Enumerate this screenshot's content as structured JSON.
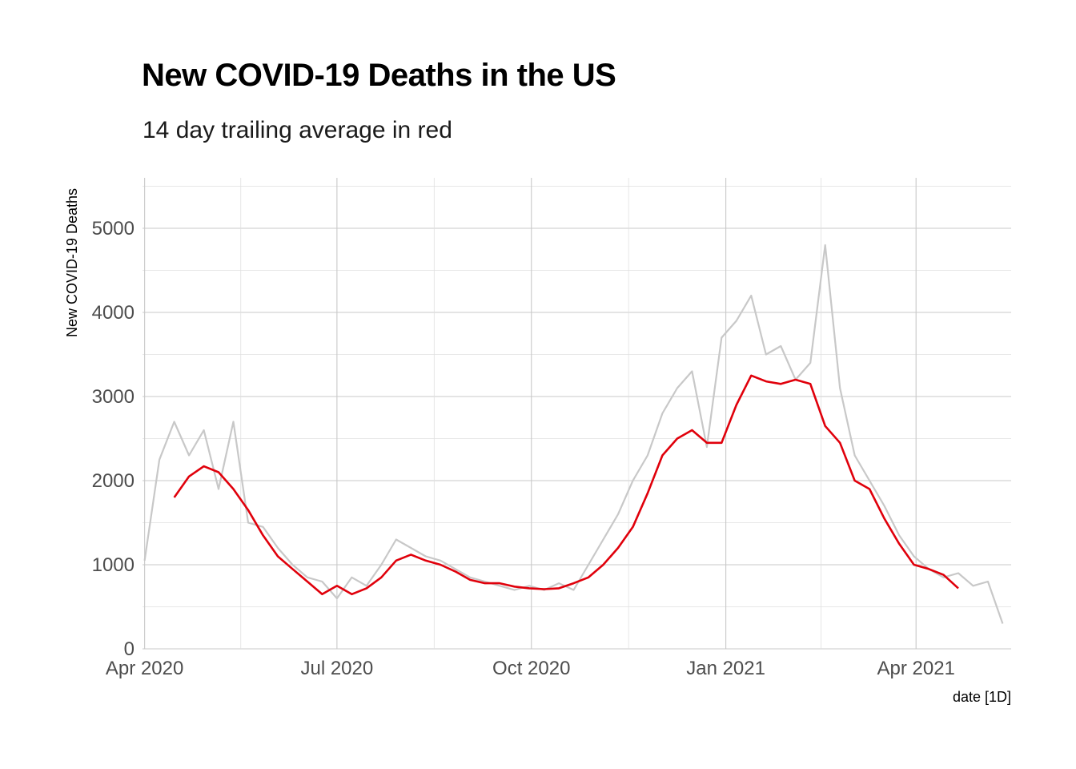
{
  "chart_data": {
    "type": "line",
    "title": "New COVID-19 Deaths in the US",
    "subtitle": "14 day trailing average in red",
    "xlabel": "date [1D]",
    "ylabel": "New COVID-19 Deaths",
    "x_range": [
      "2020-03-31",
      "2021-05-16"
    ],
    "ylim": [
      0,
      5600
    ],
    "y_ticks": [
      0,
      1000,
      2000,
      3000,
      4000,
      5000
    ],
    "y_tick_labels": [
      "0",
      "1000",
      "2000",
      "3000",
      "4000",
      "5000"
    ],
    "x_ticks": [
      "2020-04-01",
      "2020-07-01",
      "2020-10-01",
      "2021-01-01",
      "2021-04-01"
    ],
    "x_tick_labels": [
      "Apr 2020",
      "Jul 2020",
      "Oct 2020",
      "Jan 2021",
      "Apr 2021"
    ],
    "grid": true,
    "series": [
      {
        "color": "#c8c8c8",
        "x": [
          "2020-04-01",
          "2020-04-08",
          "2020-04-15",
          "2020-04-22",
          "2020-04-29",
          "2020-05-06",
          "2020-05-13",
          "2020-05-20",
          "2020-05-27",
          "2020-06-03",
          "2020-06-10",
          "2020-06-17",
          "2020-06-24",
          "2020-07-01",
          "2020-07-08",
          "2020-07-15",
          "2020-07-22",
          "2020-07-29",
          "2020-08-05",
          "2020-08-12",
          "2020-08-19",
          "2020-08-26",
          "2020-09-02",
          "2020-09-09",
          "2020-09-16",
          "2020-09-23",
          "2020-09-30",
          "2020-10-07",
          "2020-10-14",
          "2020-10-21",
          "2020-10-28",
          "2020-11-04",
          "2020-11-11",
          "2020-11-18",
          "2020-11-25",
          "2020-12-02",
          "2020-12-09",
          "2020-12-16",
          "2020-12-23",
          "2020-12-30",
          "2021-01-06",
          "2021-01-13",
          "2021-01-20",
          "2021-01-27",
          "2021-02-03",
          "2021-02-10",
          "2021-02-17",
          "2021-02-24",
          "2021-03-03",
          "2021-03-10",
          "2021-03-17",
          "2021-03-24",
          "2021-03-31",
          "2021-04-07",
          "2021-04-14",
          "2021-04-21",
          "2021-04-28",
          "2021-05-05",
          "2021-05-12"
        ],
        "values": [
          1050,
          2250,
          2700,
          2300,
          2600,
          1900,
          2700,
          1500,
          1450,
          1200,
          1000,
          850,
          800,
          600,
          850,
          750,
          1000,
          1300,
          1200,
          1100,
          1050,
          950,
          850,
          800,
          750,
          700,
          750,
          700,
          780,
          700,
          1000,
          1300,
          1600,
          2000,
          2300,
          2800,
          3100,
          3300,
          2400,
          3700,
          3900,
          4200,
          3500,
          3600,
          3200,
          3400,
          4800,
          3100,
          2300,
          2000,
          1700,
          1350,
          1100,
          950,
          850,
          900,
          750,
          800,
          300
        ]
      },
      {
        "name": "14 day trailing average",
        "color": "#e0000b",
        "x": [
          "2020-04-15",
          "2020-04-22",
          "2020-04-29",
          "2020-05-06",
          "2020-05-13",
          "2020-05-20",
          "2020-05-27",
          "2020-06-03",
          "2020-06-10",
          "2020-06-17",
          "2020-06-24",
          "2020-07-01",
          "2020-07-08",
          "2020-07-15",
          "2020-07-22",
          "2020-07-29",
          "2020-08-05",
          "2020-08-12",
          "2020-08-19",
          "2020-08-26",
          "2020-09-02",
          "2020-09-09",
          "2020-09-16",
          "2020-09-23",
          "2020-09-30",
          "2020-10-07",
          "2020-10-14",
          "2020-10-21",
          "2020-10-28",
          "2020-11-04",
          "2020-11-11",
          "2020-11-18",
          "2020-11-25",
          "2020-12-02",
          "2020-12-09",
          "2020-12-16",
          "2020-12-23",
          "2020-12-30",
          "2021-01-06",
          "2021-01-13",
          "2021-01-20",
          "2021-01-27",
          "2021-02-03",
          "2021-02-10",
          "2021-02-17",
          "2021-02-24",
          "2021-03-03",
          "2021-03-10",
          "2021-03-17",
          "2021-03-24",
          "2021-03-31",
          "2021-04-07",
          "2021-04-14",
          "2021-04-21"
        ],
        "values": [
          1800,
          2050,
          2170,
          2100,
          1900,
          1650,
          1350,
          1100,
          950,
          800,
          650,
          750,
          650,
          720,
          850,
          1050,
          1120,
          1050,
          1000,
          920,
          820,
          780,
          780,
          740,
          720,
          710,
          720,
          780,
          850,
          1000,
          1200,
          1450,
          1850,
          2300,
          2500,
          2600,
          2450,
          2450,
          2900,
          3250,
          3180,
          3150,
          3200,
          3150,
          2650,
          2450,
          2000,
          1900,
          1550,
          1250,
          1000,
          950,
          880,
          720
        ]
      }
    ]
  }
}
